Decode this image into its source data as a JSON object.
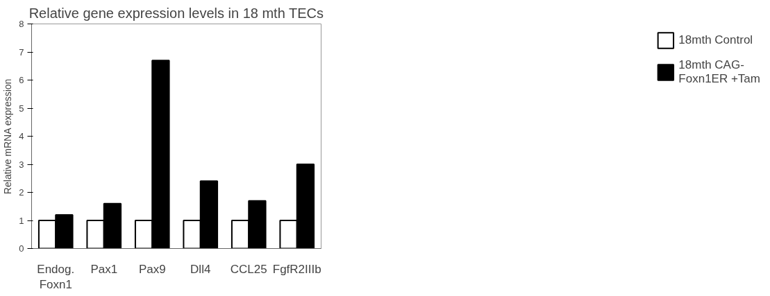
{
  "chart_data": {
    "type": "bar",
    "title": "Relative gene expression levels in 18 mth TECs",
    "ylabel": "Relative mRNA expression",
    "categories": [
      "Endog.\nFoxn1",
      "Pax1",
      "Pax9",
      "Dll4",
      "CCL25",
      "FgfR2IIIb"
    ],
    "series": [
      {
        "name": "18mth Control",
        "color": "#ffffff",
        "values": [
          1,
          1,
          1,
          1,
          1,
          1
        ]
      },
      {
        "name": "18mth CAG-\nFoxn1ER +Tam",
        "color": "#000000",
        "values": [
          1.2,
          1.6,
          6.7,
          2.4,
          1.7,
          3.0
        ]
      }
    ],
    "ylim": [
      0,
      8
    ],
    "yticks": [
      0,
      1,
      2,
      3,
      4,
      5,
      6,
      7,
      8
    ],
    "grid": false,
    "legend": "right"
  }
}
